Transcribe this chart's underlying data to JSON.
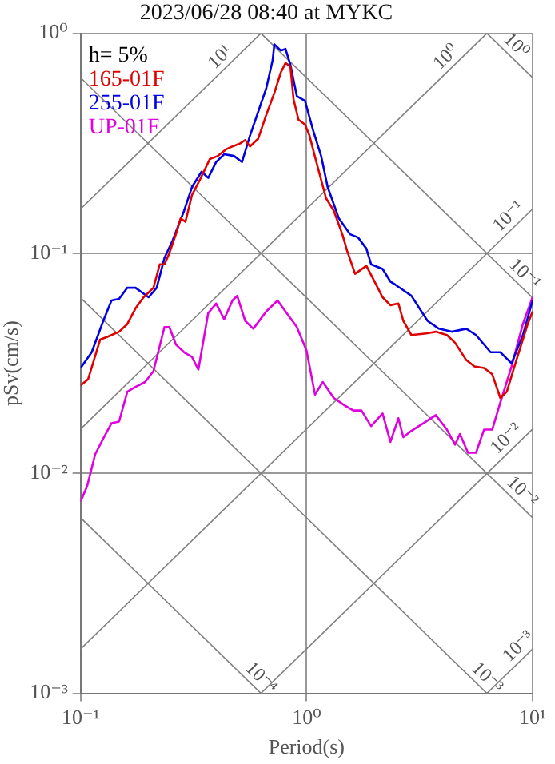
{
  "chart_data": {
    "type": "line",
    "title": "2023/06/28 08:40 at MYKC",
    "xlabel": "Period(s)",
    "ylabel": "pSv(cm/s)",
    "legend_title": "h= 5%",
    "legend": "top left",
    "log": "xy",
    "grid": true,
    "xlim": [
      0.1,
      10
    ],
    "ylim": [
      0.001,
      1
    ],
    "xticks": [
      {
        "value": 0.1,
        "label": "10⁻¹"
      },
      {
        "value": 1,
        "label": "10⁰"
      },
      {
        "value": 10,
        "label": "10¹"
      }
    ],
    "yticks": [
      {
        "value": 0.001,
        "label": "10⁻³"
      },
      {
        "value": 0.01,
        "label": "10⁻²"
      },
      {
        "value": 0.1,
        "label": "10⁻¹"
      },
      {
        "value": 1,
        "label": "10⁰"
      }
    ],
    "series": [
      {
        "name": "165-01F",
        "color": "#e00000",
        "x": [
          0.1,
          0.108,
          0.122,
          0.132,
          0.148,
          0.161,
          0.175,
          0.19,
          0.21,
          0.224,
          0.235,
          0.247,
          0.264,
          0.277,
          0.291,
          0.311,
          0.338,
          0.373,
          0.405,
          0.439,
          0.47,
          0.509,
          0.535,
          0.562,
          0.611,
          0.663,
          0.72,
          0.769,
          0.807,
          0.848,
          0.876,
          0.921,
          0.984,
          1.03,
          1.12,
          1.22,
          1.32,
          1.44,
          1.51,
          1.64,
          1.84,
          2.0,
          2.17,
          2.35,
          2.55,
          2.68,
          2.91,
          3.38,
          3.73,
          4.18,
          4.54,
          5.09,
          5.53,
          6.1,
          6.63,
          7.2,
          7.69,
          8.48,
          9.52,
          10
        ],
        "values": [
          0.0251,
          0.0268,
          0.0405,
          0.0418,
          0.044,
          0.0477,
          0.0562,
          0.0631,
          0.0697,
          0.0891,
          0.0891,
          0.1,
          0.122,
          0.144,
          0.139,
          0.184,
          0.217,
          0.268,
          0.277,
          0.296,
          0.306,
          0.316,
          0.327,
          0.306,
          0.332,
          0.425,
          0.535,
          0.663,
          0.732,
          0.708,
          0.501,
          0.405,
          0.385,
          0.343,
          0.247,
          0.178,
          0.156,
          0.122,
          0.103,
          0.0807,
          0.0877,
          0.0744,
          0.0631,
          0.0581,
          0.0591,
          0.0493,
          0.0425,
          0.0432,
          0.044,
          0.0425,
          0.0392,
          0.0327,
          0.0306,
          0.0301,
          0.0282,
          0.022,
          0.0235,
          0.0327,
          0.0477,
          0.0544
        ]
      },
      {
        "name": "255-01F",
        "color": "#0000e0",
        "x": [
          0.1,
          0.112,
          0.126,
          0.137,
          0.148,
          0.161,
          0.175,
          0.2,
          0.217,
          0.235,
          0.255,
          0.287,
          0.311,
          0.343,
          0.367,
          0.398,
          0.432,
          0.477,
          0.518,
          0.562,
          0.611,
          0.663,
          0.708,
          0.72,
          0.769,
          0.807,
          0.848,
          0.906,
          0.984,
          1.07,
          1.16,
          1.24,
          1.39,
          1.56,
          1.69,
          1.84,
          1.93,
          2.17,
          2.35,
          2.47,
          2.91,
          3.43,
          3.85,
          4.39,
          5.09,
          5.62,
          6.52,
          7.2,
          8.07,
          9.06,
          10
        ],
        "values": [
          0.0301,
          0.0355,
          0.0493,
          0.061,
          0.062,
          0.0697,
          0.0697,
          0.0631,
          0.0697,
          0.0952,
          0.114,
          0.156,
          0.2,
          0.235,
          0.22,
          0.26,
          0.282,
          0.277,
          0.26,
          0.343,
          0.44,
          0.562,
          0.756,
          0.891,
          0.835,
          0.849,
          0.72,
          0.518,
          0.493,
          0.361,
          0.277,
          0.2,
          0.144,
          0.122,
          0.118,
          0.105,
          0.0891,
          0.0849,
          0.0744,
          0.072,
          0.0641,
          0.0493,
          0.0454,
          0.044,
          0.0454,
          0.0425,
          0.0355,
          0.0355,
          0.0316,
          0.0425,
          0.061
        ]
      },
      {
        "name": "UP-01F",
        "color": "#e000e0",
        "x": [
          0.1,
          0.107,
          0.116,
          0.126,
          0.137,
          0.148,
          0.161,
          0.175,
          0.193,
          0.21,
          0.235,
          0.247,
          0.264,
          0.287,
          0.311,
          0.332,
          0.367,
          0.398,
          0.432,
          0.47,
          0.493,
          0.535,
          0.581,
          0.663,
          0.744,
          0.807,
          0.906,
          1.0,
          1.09,
          1.18,
          1.32,
          1.48,
          1.61,
          1.75,
          1.93,
          2.17,
          2.35,
          2.55,
          2.68,
          2.91,
          3.38,
          3.73,
          4.18,
          4.54,
          4.77,
          5.18,
          5.62,
          6.1,
          6.63,
          7.2,
          8.07,
          9.06,
          10
        ],
        "values": [
          0.00744,
          0.00877,
          0.0122,
          0.0144,
          0.0169,
          0.0172,
          0.0235,
          0.0247,
          0.026,
          0.0291,
          0.0462,
          0.0462,
          0.0385,
          0.0355,
          0.0338,
          0.0296,
          0.0535,
          0.0591,
          0.0501,
          0.061,
          0.0641,
          0.0493,
          0.0454,
          0.0544,
          0.061,
          0.0544,
          0.0462,
          0.0361,
          0.0228,
          0.026,
          0.022,
          0.0203,
          0.0193,
          0.0193,
          0.0164,
          0.0187,
          0.0139,
          0.0178,
          0.0146,
          0.0156,
          0.0172,
          0.0184,
          0.0158,
          0.0135,
          0.0151,
          0.0124,
          0.0124,
          0.0158,
          0.0158,
          0.021,
          0.0306,
          0.0477,
          0.0631
        ]
      },
      {
        "color": "#808080",
        "x": [
          0.1,
          0.628
        ],
        "values": [
          0.159,
          1
        ]
      },
      {
        "color": "#808080",
        "x": [
          0.1,
          6.28
        ],
        "values": [
          0.0159,
          1
        ]
      },
      {
        "color": "#808080",
        "x": [
          0.1,
          10
        ],
        "values": [
          0.00159,
          0.159
        ]
      },
      {
        "color": "#808080",
        "x": [
          0.628,
          10
        ],
        "values": [
          0.001,
          0.0159
        ]
      },
      {
        "color": "#808080",
        "x": [
          6.28,
          10
        ],
        "values": [
          0.001,
          0.00159
        ]
      },
      {
        "color": "#808080",
        "x": [
          6.28,
          10
        ],
        "values": [
          1,
          0.628
        ]
      },
      {
        "color": "#808080",
        "x": [
          0.628,
          10
        ],
        "values": [
          1,
          0.0628
        ]
      },
      {
        "color": "#808080",
        "x": [
          0.1,
          10
        ],
        "values": [
          0.628,
          0.00628
        ]
      },
      {
        "color": "#808080",
        "x": [
          0.1,
          6.28
        ],
        "values": [
          0.0628,
          0.001
        ]
      },
      {
        "color": "#808080",
        "x": [
          0.1,
          0.628
        ],
        "values": [
          0.00628,
          0.001
        ]
      }
    ],
    "annotations": [
      {
        "text": "10¹",
        "x": 0.45,
        "y": 0.716
      },
      {
        "text": "10⁰",
        "x": 4.5,
        "y": 0.716
      },
      {
        "text": "10⁰",
        "x": 7.8,
        "y": 0.806
      },
      {
        "text": "10⁻¹",
        "x": 8.5,
        "y": 0.135
      },
      {
        "text": "10⁻¹",
        "x": 8.5,
        "y": 0.0739
      },
      {
        "text": "10⁻²",
        "x": 8.3,
        "y": 0.0132
      },
      {
        "text": "10⁻²",
        "x": 8.3,
        "y": 0.00757
      },
      {
        "text": "10⁻³",
        "x": 9.4,
        "y": 0.0015
      },
      {
        "text": "10⁻³",
        "x": 5.8,
        "y": 0.00108
      },
      {
        "text": "10⁻⁴",
        "x": 0.58,
        "y": 0.00108
      }
    ]
  }
}
